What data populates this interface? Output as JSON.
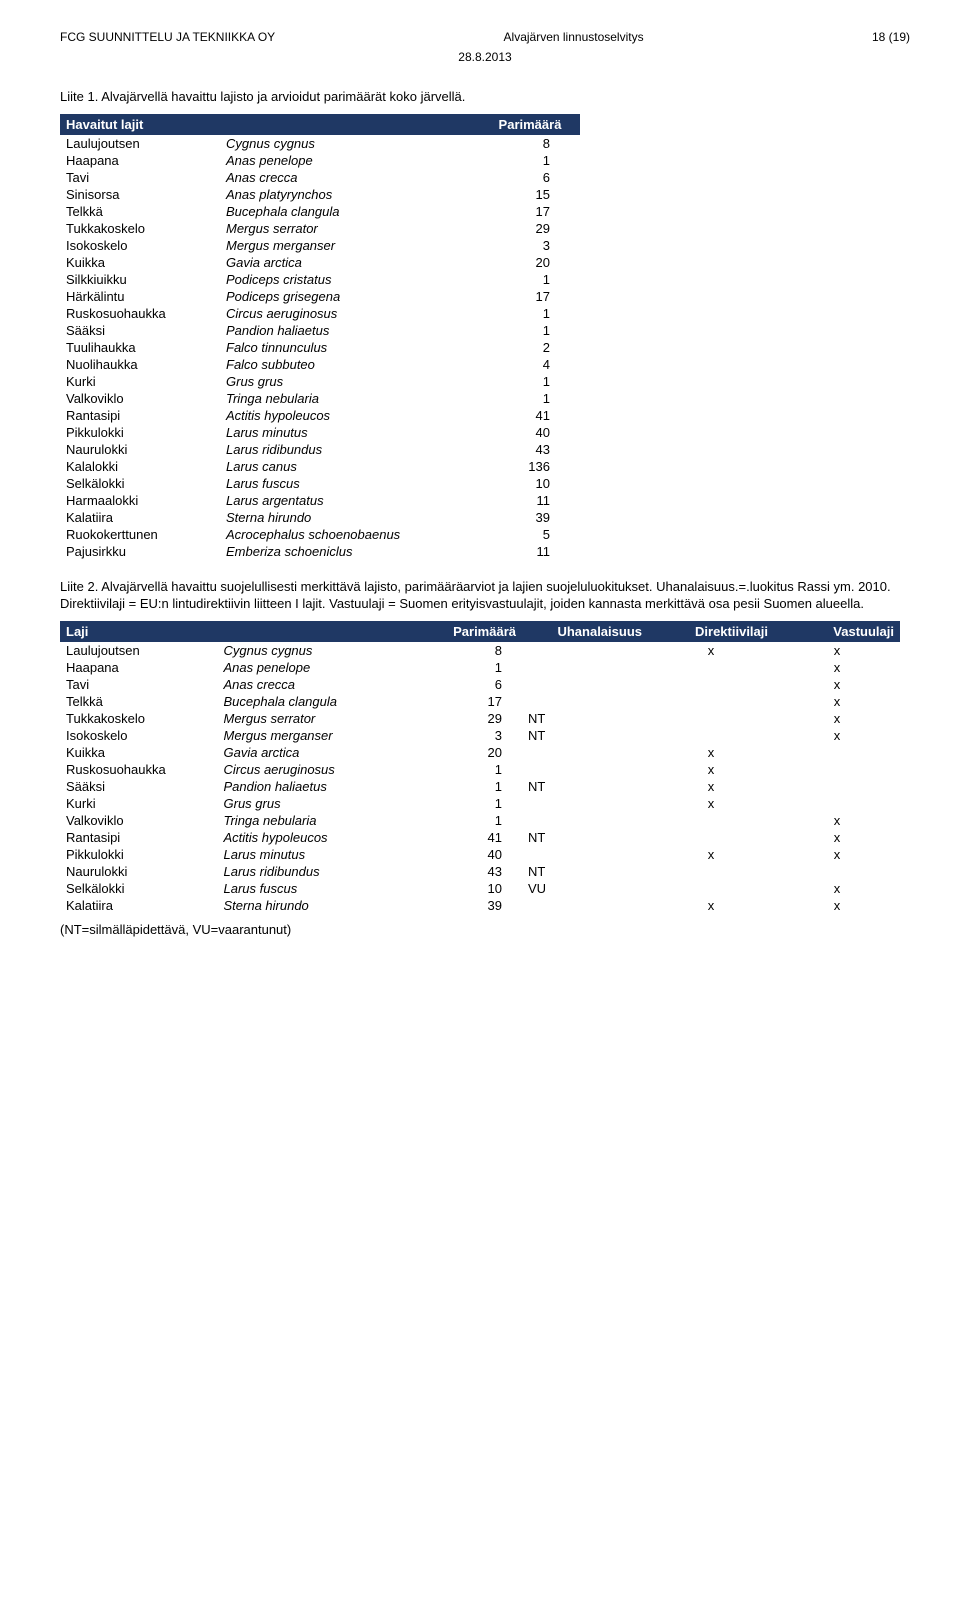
{
  "header": {
    "left": "FCG SUUNNITTELU JA TEKNIIKKA OY",
    "center": "Alvajärven linnustoselvitys",
    "right": "18 (19)",
    "date": "28.8.2013"
  },
  "caption1": "Liite 1. Alvajärvellä havaittu lajisto ja arvioidut parimäärät koko järvellä.",
  "table1": {
    "headers": [
      "Havaitut lajit",
      "",
      "Parimäärä"
    ],
    "rows": [
      [
        "Laulujoutsen",
        "Cygnus cygnus",
        "8"
      ],
      [
        "Haapana",
        "Anas penelope",
        "1"
      ],
      [
        "Tavi",
        "Anas crecca",
        "6"
      ],
      [
        "Sinisorsa",
        "Anas platyrynchos",
        "15"
      ],
      [
        "Telkkä",
        "Bucephala clangula",
        "17"
      ],
      [
        "Tukkakoskelo",
        "Mergus serrator",
        "29"
      ],
      [
        "Isokoskelo",
        "Mergus merganser",
        "3"
      ],
      [
        "Kuikka",
        "Gavia arctica",
        "20"
      ],
      [
        "Silkkiuikku",
        "Podiceps cristatus",
        "1"
      ],
      [
        "Härkälintu",
        "Podiceps grisegena",
        "17"
      ],
      [
        "Ruskosuohaukka",
        "Circus aeruginosus",
        "1"
      ],
      [
        "Sääksi",
        "Pandion haliaetus",
        "1"
      ],
      [
        "Tuulihaukka",
        "Falco tinnunculus",
        "2"
      ],
      [
        "Nuolihaukka",
        "Falco subbuteo",
        "4"
      ],
      [
        "Kurki",
        "Grus grus",
        "1"
      ],
      [
        "Valkoviklo",
        "Tringa nebularia",
        "1"
      ],
      [
        "Rantasipi",
        "Actitis hypoleucos",
        "41"
      ],
      [
        "Pikkulokki",
        "Larus minutus",
        "40"
      ],
      [
        "Naurulokki",
        "Larus ridibundus",
        "43"
      ],
      [
        "Kalalokki",
        "Larus canus",
        "136"
      ],
      [
        "Selkälokki",
        "Larus fuscus",
        "10"
      ],
      [
        "Harmaalokki",
        "Larus argentatus",
        "11"
      ],
      [
        "Kalatiira",
        "Sterna hirundo",
        "39"
      ],
      [
        "Ruokokerttunen",
        "Acrocephalus schoenobaenus",
        "5"
      ],
      [
        "Pajusirkku",
        "Emberiza schoeniclus",
        "11"
      ]
    ]
  },
  "caption2": "Liite 2. Alvajärvellä havaittu suojelullisesti merkittävä lajisto, parimääräarviot ja lajien suojeluluokitukset. Uhanalaisuus.=.luokitus Rassi ym. 2010. Direktiivilaji = EU:n lintudirektiivin liitteen I lajit. Vastuulaji = Suomen erityisvastuulajit, joiden kannasta merkittävä osa pesii Suomen alueella.",
  "table2": {
    "headers": [
      "Laji",
      "",
      "Parimäärä",
      "Uhanalaisuus",
      "Direktiivilaji",
      "Vastuulaji"
    ],
    "rows": [
      [
        "Laulujoutsen",
        "Cygnus cygnus",
        "8",
        "",
        "x",
        "x"
      ],
      [
        "Haapana",
        "Anas penelope",
        "1",
        "",
        "",
        "x"
      ],
      [
        "Tavi",
        "Anas crecca",
        "6",
        "",
        "",
        "x"
      ],
      [
        "Telkkä",
        "Bucephala clangula",
        "17",
        "",
        "",
        "x"
      ],
      [
        "Tukkakoskelo",
        "Mergus serrator",
        "29",
        "NT",
        "",
        "x"
      ],
      [
        "Isokoskelo",
        "Mergus merganser",
        "3",
        "NT",
        "",
        "x"
      ],
      [
        "Kuikka",
        "Gavia arctica",
        "20",
        "",
        "x",
        ""
      ],
      [
        "Ruskosuohaukka",
        "Circus aeruginosus",
        "1",
        "",
        "x",
        ""
      ],
      [
        "Sääksi",
        "Pandion haliaetus",
        "1",
        "NT",
        "x",
        ""
      ],
      [
        "Kurki",
        "Grus grus",
        "1",
        "",
        "x",
        ""
      ],
      [
        "Valkoviklo",
        "Tringa nebularia",
        "1",
        "",
        "",
        "x"
      ],
      [
        "Rantasipi",
        "Actitis hypoleucos",
        "41",
        "NT",
        "",
        "x"
      ],
      [
        "Pikkulokki",
        "Larus minutus",
        "40",
        "",
        "x",
        "x"
      ],
      [
        "Naurulokki",
        "Larus ridibundus",
        "43",
        "NT",
        "",
        ""
      ],
      [
        "Selkälokki",
        "Larus fuscus",
        "10",
        "VU",
        "",
        "x"
      ],
      [
        "Kalatiira",
        "Sterna hirundo",
        "39",
        "",
        "x",
        "x"
      ]
    ]
  },
  "footnote": "(NT=silmälläpidettävä, VU=vaarantunut)"
}
